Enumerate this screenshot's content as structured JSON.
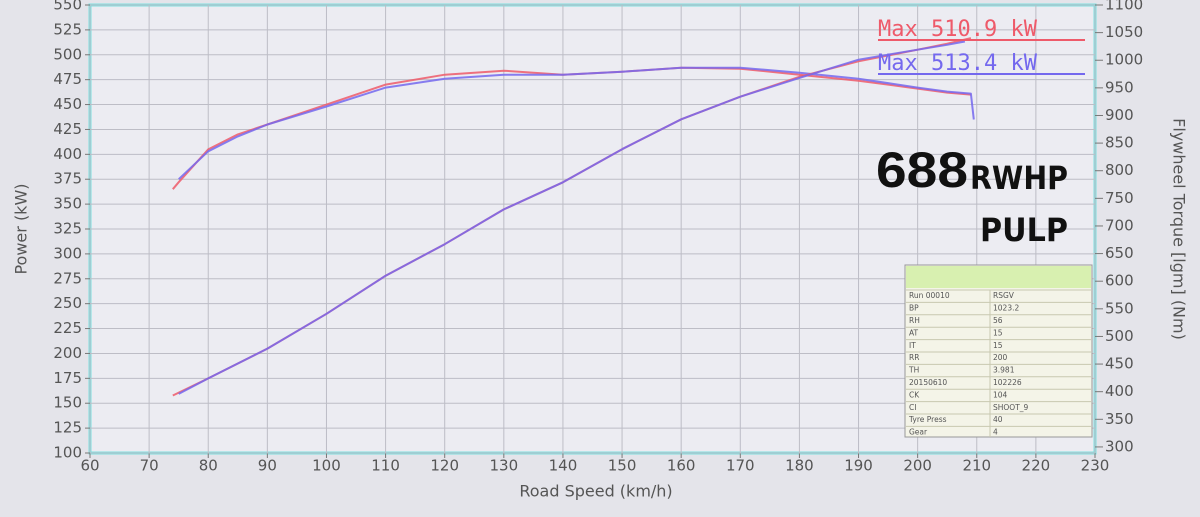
{
  "chart_data": {
    "type": "line",
    "x_label": "Road Speed (km/h)",
    "y_label": "Power (kW)",
    "y2_label": "Flywheel Torque [lgm] (Nm)",
    "xlim": [
      60,
      230
    ],
    "xticks": [
      60,
      70,
      80,
      90,
      100,
      110,
      120,
      130,
      140,
      150,
      160,
      170,
      180,
      190,
      200,
      210,
      220,
      230
    ],
    "ylim": [
      100,
      550
    ],
    "yticks": [
      100,
      125,
      150,
      175,
      200,
      225,
      250,
      275,
      300,
      325,
      350,
      375,
      400,
      425,
      450,
      475,
      500,
      525,
      550
    ],
    "y2lim": [
      289,
      1100
    ],
    "y2ticks": [
      300,
      350,
      400,
      450,
      500,
      550,
      600,
      650,
      700,
      750,
      800,
      850,
      900,
      950,
      1000,
      1050,
      1100
    ],
    "grid": true,
    "series": [
      {
        "color": "#ee5a6a",
        "x": [
          74,
          75,
          80,
          85,
          90,
          100,
          110,
          120,
          130,
          140,
          150,
          160,
          170,
          180,
          190,
          200,
          205,
          209
        ],
        "values": [
          365,
          372,
          405,
          420,
          430,
          450,
          470,
          480,
          484,
          480,
          483,
          487,
          486,
          480,
          474,
          466,
          462,
          460
        ]
      },
      {
        "color": "#7468ee",
        "x": [
          75,
          80,
          85,
          90,
          100,
          110,
          120,
          130,
          140,
          150,
          160,
          170,
          180,
          190,
          200,
          205,
          209,
          209.5
        ],
        "values": [
          375,
          403,
          418,
          430,
          448,
          467,
          476,
          480,
          480,
          483,
          487,
          487,
          482,
          476,
          467,
          463,
          461,
          435
        ]
      },
      {
        "color": "#ee5a6a",
        "axis": "y2",
        "x": [
          74,
          80,
          90,
          100,
          110,
          120,
          130,
          140,
          150,
          160,
          170,
          180,
          190,
          200,
          205,
          209
        ],
        "values": [
          393,
          424,
          478,
          541,
          610,
          667,
          730,
          779,
          839,
          893,
          934,
          970,
          998,
          1019,
          1030,
          1040
        ]
      },
      {
        "color": "#7468ee",
        "axis": "y2",
        "x": [
          75,
          80,
          90,
          100,
          110,
          120,
          130,
          140,
          150,
          160,
          170,
          180,
          190,
          200,
          205,
          208
        ],
        "values": [
          396,
          424,
          478,
          541,
          610,
          667,
          730,
          779,
          839,
          893,
          934,
          968,
          1001,
          1019,
          1028,
          1034
        ]
      }
    ],
    "annotations": [
      {
        "text": "Max 510.9 kW",
        "color": "#ee5a6a"
      },
      {
        "text": "Max 513.4 kW",
        "color": "#7468ee"
      },
      {
        "text": "688"
      },
      {
        "text": "RWHP"
      },
      {
        "text": "PULP"
      }
    ],
    "info_table": [
      [
        "Run 00010",
        "RSGV"
      ],
      [
        "BP",
        "1023.2"
      ],
      [
        "RH",
        "56"
      ],
      [
        "AT",
        "15"
      ],
      [
        "IT",
        "15"
      ],
      [
        "RR",
        "200"
      ],
      [
        "TH",
        "3.981"
      ],
      [
        "20150610",
        "102226"
      ],
      [
        "CK",
        "104"
      ],
      [
        "CI",
        "SHOOT_9"
      ],
      [
        "Tyre Press",
        "40"
      ],
      [
        "Gear",
        "4"
      ]
    ]
  }
}
